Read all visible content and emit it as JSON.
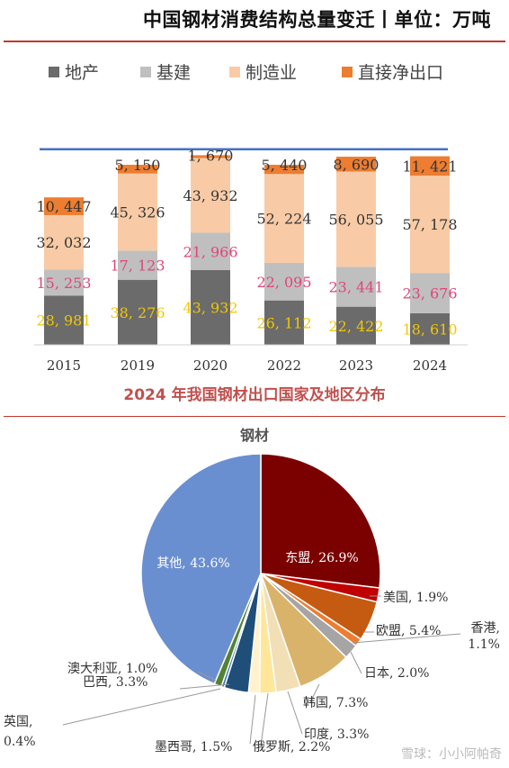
{
  "title": "中国钢材消费结构总量变迁丨单位：万吨",
  "legend": [
    {
      "label": "地产",
      "color": "#6b6b6b"
    },
    {
      "label": "基建",
      "color": "#bfbfbf"
    },
    {
      "label": "制造业",
      "color": "#f8cba6"
    },
    {
      "label": "直接净出口",
      "color": "#ed7d31"
    }
  ],
  "subtitle": "2024 年我国钢材出口国家及地区分布",
  "pie_title": "钢材",
  "watermark": "雪球：小小阿帕奇",
  "chart_data": [
    {
      "type": "bar",
      "stacked": true,
      "categories": [
        "2015",
        "2019",
        "2020",
        "2022",
        "2023",
        "2024"
      ],
      "series": [
        {
          "name": "地产",
          "values": [
            28981,
            38276,
            43932,
            26112,
            22422,
            18610
          ],
          "labels": [
            "28, 981",
            "38, 276",
            "43, 932",
            "26, 112",
            "22, 422",
            "18, 610"
          ],
          "color": "#6b6b6b",
          "label_color": "#f0c800"
        },
        {
          "name": "基建",
          "values": [
            15253,
            17123,
            21966,
            22095,
            23441,
            23676
          ],
          "labels": [
            "15, 253",
            "17, 123",
            "21, 966",
            "22, 095",
            "23, 441",
            "23, 676"
          ],
          "color": "#bfbfbf",
          "label_color": "#e0457a"
        },
        {
          "name": "制造业",
          "values": [
            32032,
            45326,
            43932,
            52224,
            56055,
            57178
          ],
          "labels": [
            "32, 032",
            "45, 326",
            "43, 932",
            "52, 224",
            "56, 055",
            "57, 178"
          ],
          "color": "#f8cba6",
          "label_color": "#333333"
        },
        {
          "name": "直接净出口",
          "values": [
            10447,
            5150,
            1670,
            5440,
            8690,
            11421
          ],
          "labels": [
            "10, 447",
            "5, 150",
            "1, 670",
            "5, 440",
            "8, 690",
            "11, 421"
          ],
          "color": "#ed7d31",
          "label_color": "#333333"
        }
      ],
      "reference_line": {
        "value": 115000,
        "color": "#4472c4"
      },
      "ylim": [
        0,
        117000
      ],
      "grid": false
    },
    {
      "type": "pie",
      "title": "钢材",
      "slices": [
        {
          "label": "东盟",
          "value": 26.9,
          "text": "东盟, 26.9%",
          "color": "#7b0000"
        },
        {
          "label": "美国",
          "value": 1.9,
          "text": "美国, 1.9%",
          "color": "#c00000"
        },
        {
          "label": "欧盟",
          "value": 5.4,
          "text": "欧盟, 5.4%",
          "color": "#c55a11"
        },
        {
          "label": "香港",
          "value": 1.1,
          "text": "香港, 1.1%",
          "color": "#ed7d31"
        },
        {
          "label": "日本",
          "value": 2.0,
          "text": "日本, 2.0%",
          "color": "#a5a5a5"
        },
        {
          "label": "韩国",
          "value": 7.3,
          "text": "韩国, 7.3%",
          "color": "#d9b36a"
        },
        {
          "label": "印度",
          "value": 3.3,
          "text": "印度, 3.3%",
          "color": "#f2dfb5"
        },
        {
          "label": "俄罗斯",
          "value": 2.2,
          "text": "俄罗斯, 2.2%",
          "color": "#ffe699"
        },
        {
          "label": "墨西哥",
          "value": 1.5,
          "text": "墨西哥, 1.5%",
          "color": "#fff2cc"
        },
        {
          "label": "巴西",
          "value": 3.3,
          "text": "巴西, 3.3%",
          "color": "#1f4e79"
        },
        {
          "label": "英国",
          "value": 0.4,
          "text": "英国, 0.4%",
          "color": "#2e75b6"
        },
        {
          "label": "澳大利亚",
          "value": 1.0,
          "text": "澳大利亚, 1.0%",
          "color": "#548235"
        },
        {
          "label": "其他",
          "value": 43.6,
          "text": "其他, 43.6%",
          "color": "#6a8fd0"
        }
      ]
    }
  ]
}
